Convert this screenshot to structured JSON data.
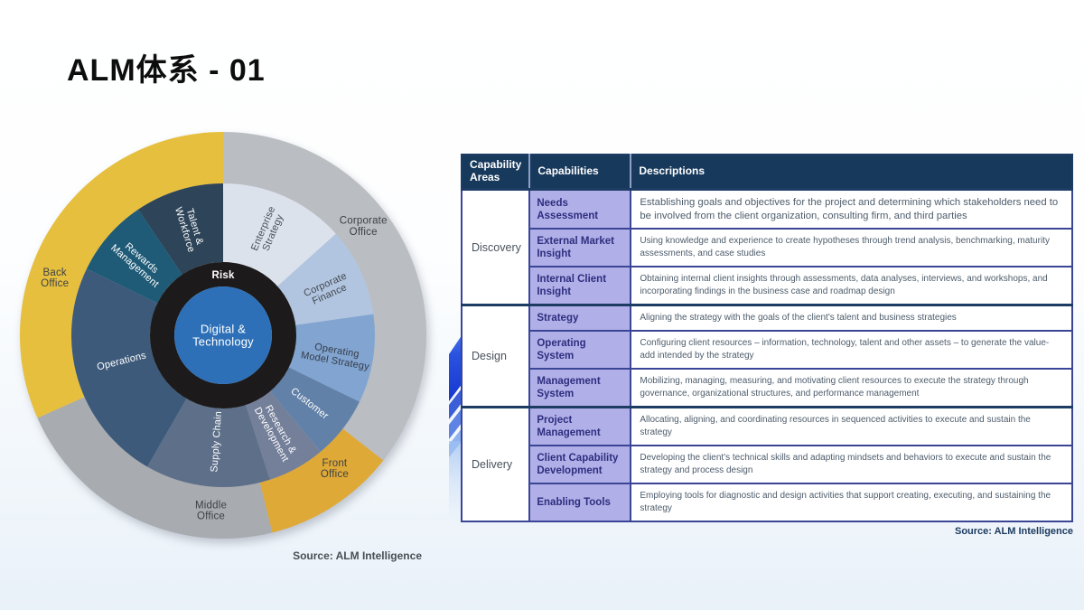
{
  "slide": {
    "title": "ALM体系 - 01"
  },
  "wheel": {
    "source": "Source: ALM Intelligence"
  },
  "panel": {
    "source": "Source: ALM Intelligence"
  },
  "chart_data": {
    "type": "sunburst",
    "title": "",
    "legend_position": "none",
    "radii": {
      "outer": [
        168,
        225
      ],
      "inner": [
        81,
        168
      ],
      "risk": [
        54,
        81
      ],
      "center": 54
    },
    "center": {
      "label_lines": [
        "Digital &",
        "Technology"
      ],
      "label": "Digital & Technology",
      "color": "#2e70b8",
      "text": "#ffffff"
    },
    "risk_ring": {
      "label": "Risk",
      "color": "#1c1a1a",
      "text": "#ffffff",
      "label_a": 0,
      "label_r": 67
    },
    "outer_segments": [
      {
        "id": "corporate-office",
        "label": "Corporate Office",
        "label_lines": [
          "Corporate",
          "Office"
        ],
        "a0": 0,
        "a1": 128,
        "color": "#babdc1",
        "text": "#3d4246",
        "label_a": 52,
        "label_r": 197
      },
      {
        "id": "front-office",
        "label": "Front Office",
        "label_lines": [
          "Front",
          "Office"
        ],
        "a0": 128,
        "a1": 166,
        "color": "#dfa937",
        "text": "#3d4246",
        "label_a": 140,
        "label_r": 192
      },
      {
        "id": "middle-office",
        "label": "Middle Office",
        "label_lines": [
          "Middle",
          "Office"
        ],
        "a0": 166,
        "a1": 246,
        "color": "#a8abaf",
        "text": "#3d4246",
        "label_a": 184,
        "label_r": 194
      },
      {
        "id": "back-office",
        "label": "Back Office",
        "label_lines": [
          "Back",
          "Office"
        ],
        "a0": 246,
        "a1": 360,
        "color": "#e6bf3f",
        "text": "#3d4246",
        "label_a": 289,
        "label_r": 197
      }
    ],
    "inner_segments": [
      {
        "id": "enterprise-strategy",
        "label": "Enterprise Strategy",
        "label_lines": [
          "Enterprise",
          "Strategy"
        ],
        "a0": 0,
        "a1": 48,
        "color": "#dce2ec",
        "text": "#4a4e53",
        "label_a": 23,
        "label_r": 126
      },
      {
        "id": "corporate-finance",
        "label": "Corporate Finance",
        "label_lines": [
          "Corporate",
          "Finance"
        ],
        "a0": 48,
        "a1": 82,
        "color": "#b1c5e0",
        "text": "#43474d",
        "label_a": 66,
        "label_r": 126
      },
      {
        "id": "operating-model-strategy",
        "label": "Operating Model Strategy",
        "label_lines": [
          "Operating",
          "Model Strategy"
        ],
        "a0": 82,
        "a1": 116,
        "color": "#81a4d1",
        "text": "#353c45",
        "label_a": 100,
        "label_r": 127
      },
      {
        "id": "customer",
        "label": "Customer",
        "label_lines": [
          "Customer"
        ],
        "a0": 116,
        "a1": 140,
        "color": "#6181a8",
        "text": "#ffffff",
        "label_a": 128,
        "label_r": 122
      },
      {
        "id": "research-development",
        "label": "Research & Development",
        "label_lines": [
          "Research &",
          "Development"
        ],
        "a0": 140,
        "a1": 162,
        "color": "#747f99",
        "text": "#ffffff",
        "label_a": 151,
        "label_r": 122
      },
      {
        "id": "supply-chain",
        "label": "Supply Chain",
        "label_lines": [
          "Supply Chain"
        ],
        "a0": 162,
        "a1": 210,
        "color": "#5e7089",
        "text": "#ffffff",
        "label_a": 184,
        "label_r": 118
      },
      {
        "id": "operations",
        "label": "Operations",
        "label_lines": [
          "Operations"
        ],
        "a0": 210,
        "a1": 296,
        "color": "#3d5a7a",
        "text": "#ffffff",
        "label_a": 256,
        "label_r": 116
      },
      {
        "id": "rewards-management",
        "label": "Rewards Management",
        "label_lines": [
          "Rewards",
          "Management"
        ],
        "a0": 296,
        "a1": 326,
        "color": "#1f5b77",
        "text": "#ffffff",
        "label_a": 311,
        "label_r": 124
      },
      {
        "id": "talent-workforce",
        "label": "Talent & Workforce",
        "label_lines": [
          "Talent &",
          "Workforce"
        ],
        "a0": 326,
        "a1": 360,
        "color": "#2d4459",
        "text": "#ffffff",
        "label_a": 343,
        "label_r": 124
      }
    ]
  },
  "table": {
    "headers": [
      "Capability Areas",
      "Capabilities",
      "Descriptions"
    ],
    "groups": [
      {
        "area": "Discovery",
        "rows": [
          {
            "capability": "Needs Assessment",
            "description": "Establishing goals and objectives for the project and determining which stakeholders need to be involved from the client organization, consulting firm, and third parties"
          },
          {
            "capability": "External Market Insight",
            "description": "Using knowledge and experience to create hypotheses through trend analysis, benchmarking, maturity assessments, and case studies"
          },
          {
            "capability": "Internal Client Insight",
            "description": "Obtaining internal client insights through assessments, data analyses, interviews, and workshops, and incorporating findings in the business case and roadmap design"
          }
        ]
      },
      {
        "area": "Design",
        "rows": [
          {
            "capability": "Strategy",
            "description": "Aligning the strategy with the goals of the client's talent and business strategies"
          },
          {
            "capability": "Operating System",
            "description": "Configuring client resources – information, technology, talent and other assets – to generate the value-add intended by the strategy"
          },
          {
            "capability": "Management System",
            "description": "Mobilizing, managing, measuring, and motivating client resources to execute the strategy through governance, organizational structures, and performance management"
          }
        ]
      },
      {
        "area": "Delivery",
        "rows": [
          {
            "capability": "Project Management",
            "description": "Allocating, aligning, and coordinating resources in sequenced activities to execute and sustain the strategy"
          },
          {
            "capability": "Client Capability Development",
            "description": "Developing the client's technical skills and adapting mindsets and behaviors to execute and sustain the strategy and process design"
          },
          {
            "capability": "Enabling Tools",
            "description": "Employing tools for diagnostic and design activities that support creating, executing, and sustaining the strategy"
          }
        ]
      }
    ]
  }
}
